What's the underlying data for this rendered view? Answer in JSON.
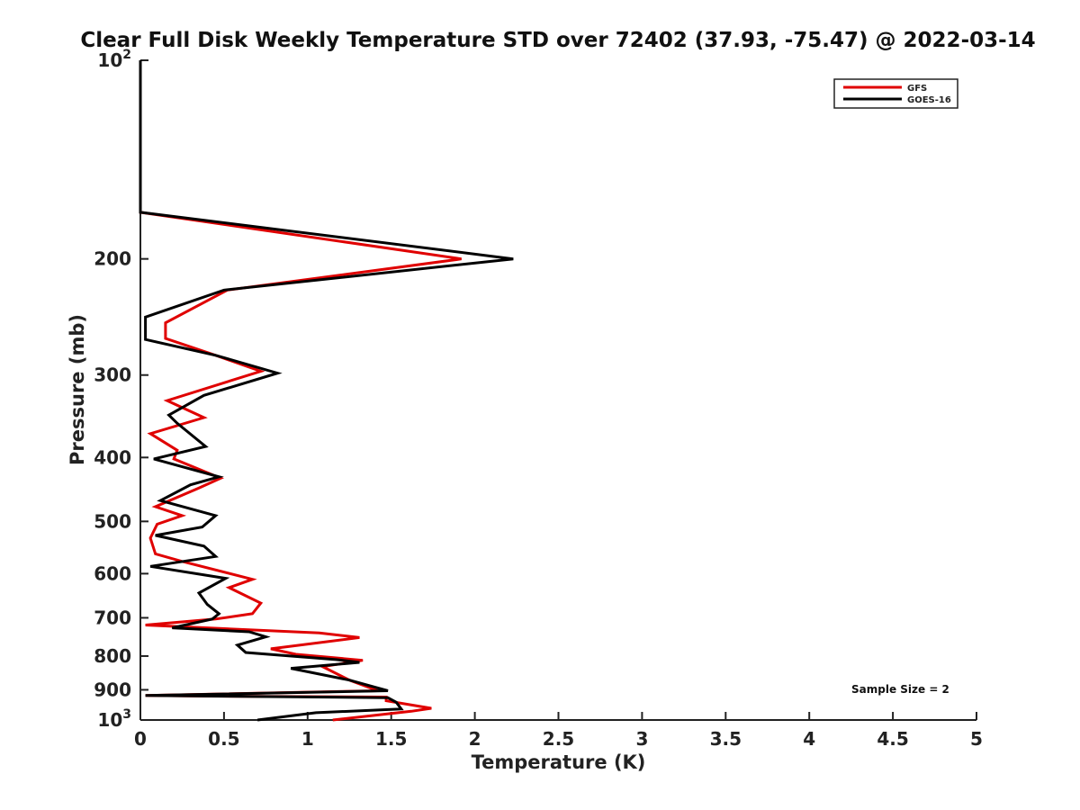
{
  "chart_data": {
    "type": "line",
    "title": "Clear Full Disk Weekly Temperature STD over 72402 (37.93, -75.47) @ 2022-03-14",
    "xlabel": "Temperature (K)",
    "ylabel": "Pressure (mb)",
    "xlim": [
      0,
      5
    ],
    "ylim": [
      100,
      1000
    ],
    "y_scale": "log",
    "y_reversed": true,
    "grid": false,
    "legend_position": "top-right",
    "x_ticks": [
      0,
      0.5,
      1,
      1.5,
      2,
      2.5,
      3,
      3.5,
      4,
      4.5,
      5
    ],
    "x_tick_labels": [
      "0",
      "0.5",
      "1",
      "1.5",
      "2",
      "2.5",
      "3",
      "3.5",
      "4",
      "4.5",
      "5"
    ],
    "y_ticks": [
      {
        "value": 100,
        "base": "10",
        "exp": "2"
      },
      {
        "value": 200,
        "label": "200"
      },
      {
        "value": 300,
        "label": "300"
      },
      {
        "value": 400,
        "label": "400"
      },
      {
        "value": 500,
        "label": "500"
      },
      {
        "value": 600,
        "label": "600"
      },
      {
        "value": 700,
        "label": "700"
      },
      {
        "value": 800,
        "label": "800"
      },
      {
        "value": 900,
        "label": "900"
      },
      {
        "value": 1000,
        "base": "10",
        "exp": "3"
      }
    ],
    "annotation": "Sample Size = 2",
    "series": [
      {
        "name": "GFS",
        "color": "#e00000",
        "points": [
          [
            0,
            100
          ],
          [
            0,
            170
          ],
          [
            1.92,
            200
          ],
          [
            0.52,
            223
          ],
          [
            0.15,
            250
          ],
          [
            0.15,
            264
          ],
          [
            0.45,
            280
          ],
          [
            0.72,
            296
          ],
          [
            0.16,
            328
          ],
          [
            0.38,
            348
          ],
          [
            0.06,
            368
          ],
          [
            0.22,
            390
          ],
          [
            0.2,
            402
          ],
          [
            0.48,
            430
          ],
          [
            0.35,
            445
          ],
          [
            0.09,
            475
          ],
          [
            0.25,
            490
          ],
          [
            0.1,
            505
          ],
          [
            0.06,
            530
          ],
          [
            0.09,
            560
          ],
          [
            0.25,
            575
          ],
          [
            0.67,
            612
          ],
          [
            0.53,
            630
          ],
          [
            0.72,
            665
          ],
          [
            0.67,
            690
          ],
          [
            0.45,
            703
          ],
          [
            0.03,
            718
          ],
          [
            1.07,
            738
          ],
          [
            1.31,
            750
          ],
          [
            0.78,
            780
          ],
          [
            0.93,
            795
          ],
          [
            1.33,
            812
          ],
          [
            1.09,
            830
          ],
          [
            1.25,
            870
          ],
          [
            1.42,
            903
          ],
          [
            0.03,
            918
          ],
          [
            0.42,
            920
          ],
          [
            1.47,
            923
          ],
          [
            1.47,
            935
          ],
          [
            1.74,
            960
          ],
          [
            1.62,
            970
          ],
          [
            1.15,
            1000
          ]
        ]
      },
      {
        "name": "GOES-16",
        "color": "#000000",
        "points": [
          [
            0,
            100
          ],
          [
            0,
            170
          ],
          [
            2.23,
            200
          ],
          [
            0.5,
            223
          ],
          [
            0.03,
            245
          ],
          [
            0.03,
            265
          ],
          [
            0.45,
            280
          ],
          [
            0.82,
            298
          ],
          [
            0.38,
            322
          ],
          [
            0.17,
            345
          ],
          [
            0.22,
            355
          ],
          [
            0.39,
            385
          ],
          [
            0.08,
            402
          ],
          [
            0.47,
            428
          ],
          [
            0.3,
            440
          ],
          [
            0.12,
            465
          ],
          [
            0.45,
            490
          ],
          [
            0.37,
            510
          ],
          [
            0.09,
            525
          ],
          [
            0.38,
            545
          ],
          [
            0.45,
            565
          ],
          [
            0.06,
            585
          ],
          [
            0.51,
            610
          ],
          [
            0.35,
            642
          ],
          [
            0.4,
            668
          ],
          [
            0.47,
            690
          ],
          [
            0.43,
            703
          ],
          [
            0.19,
            725
          ],
          [
            0.65,
            735
          ],
          [
            0.75,
            748
          ],
          [
            0.58,
            770
          ],
          [
            0.63,
            790
          ],
          [
            1.17,
            810
          ],
          [
            1.31,
            818
          ],
          [
            0.9,
            835
          ],
          [
            1.25,
            870
          ],
          [
            1.48,
            903
          ],
          [
            0.03,
            918
          ],
          [
            1.48,
            925
          ],
          [
            1.53,
            940
          ],
          [
            1.56,
            962
          ],
          [
            1.05,
            975
          ],
          [
            0.7,
            1000
          ]
        ]
      }
    ]
  }
}
